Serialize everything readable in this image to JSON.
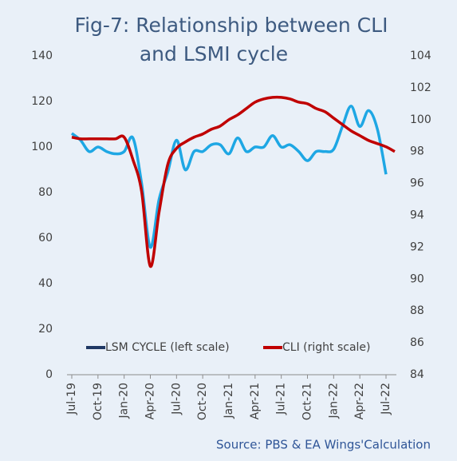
{
  "chart_data": {
    "type": "line",
    "title": [
      "Fig-7: Relationship between CLI",
      "and LSMI cycle"
    ],
    "source": "Source: PBS & EA Wings'Calculation",
    "categories": [
      "Jul-19",
      null,
      null,
      "Oct-19",
      null,
      null,
      "Jan-20",
      null,
      null,
      "Apr-20",
      null,
      null,
      "Jul-20",
      null,
      null,
      "Oct-20",
      null,
      null,
      "Jan-21",
      null,
      null,
      "Apr-21",
      null,
      null,
      "Jul-21",
      null,
      null,
      "Oct-21",
      null,
      null,
      "Jan-22",
      null,
      null,
      "Apr-22",
      null,
      null,
      "Jul-22",
      null
    ],
    "series": [
      {
        "name": "LSM CYCLE (left scale)",
        "color": "#1ea7e4",
        "legend_color": "#1f3864",
        "axis": "y",
        "values": [
          106,
          103,
          98,
          100,
          98,
          97,
          98,
          104,
          84,
          56,
          77,
          89,
          103,
          90,
          98,
          98,
          101,
          101,
          97,
          104,
          98,
          100,
          100,
          105,
          100,
          101,
          98,
          94,
          98,
          98,
          99,
          109,
          118,
          109,
          116,
          108,
          88,
          null
        ]
      },
      {
        "name": "CLI (right scale)",
        "color": "#c00000",
        "legend_color": "#c00000",
        "axis": "y2",
        "values": [
          98.9,
          98.8,
          98.8,
          98.8,
          98.8,
          98.8,
          98.9,
          97.5,
          95.5,
          90.8,
          94.2,
          97.2,
          98.2,
          98.6,
          98.9,
          99.1,
          99.4,
          99.6,
          100.0,
          100.3,
          100.7,
          101.1,
          101.3,
          101.4,
          101.4,
          101.3,
          101.1,
          101.0,
          100.7,
          100.5,
          100.1,
          99.7,
          99.3,
          99.0,
          98.7,
          98.5,
          98.3,
          98.0
        ]
      }
    ],
    "ylim": [
      0,
      140
    ],
    "yticks": [
      0,
      20,
      40,
      60,
      80,
      100,
      120,
      140
    ],
    "y2lim": [
      84,
      104
    ],
    "y2ticks": [
      84,
      86,
      88,
      90,
      92,
      94,
      96,
      98,
      100,
      102,
      104
    ],
    "grid": false,
    "legend": "bottom"
  }
}
